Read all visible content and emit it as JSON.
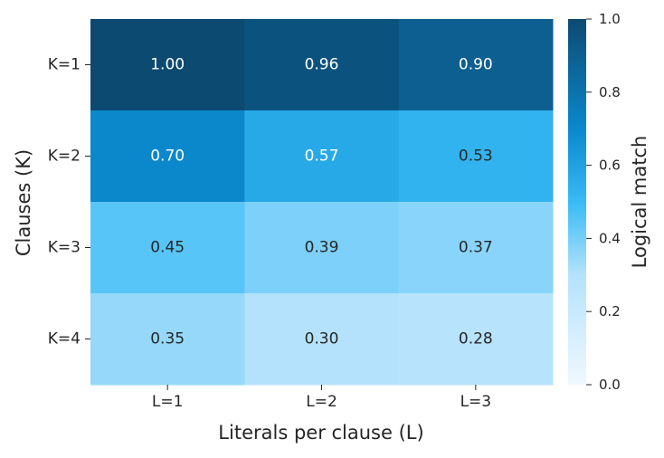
{
  "chart_data": {
    "type": "heatmap",
    "x_categories": [
      "L=1",
      "L=2",
      "L=3"
    ],
    "y_categories": [
      "K=1",
      "K=2",
      "K=3",
      "K=4"
    ],
    "values": [
      [
        1.0,
        0.96,
        0.9
      ],
      [
        0.7,
        0.57,
        0.53
      ],
      [
        0.45,
        0.39,
        0.37
      ],
      [
        0.35,
        0.3,
        0.28
      ]
    ],
    "value_labels": [
      [
        "1.00",
        "0.96",
        "0.90"
      ],
      [
        "0.70",
        "0.57",
        "0.53"
      ],
      [
        "0.45",
        "0.39",
        "0.37"
      ],
      [
        "0.35",
        "0.30",
        "0.28"
      ]
    ],
    "xlabel": "Literals per clause (L)",
    "ylabel": "Clauses (K)",
    "colorbar": {
      "label": "Logical match",
      "range": [
        0.0,
        1.0
      ],
      "ticks": [
        "0.0",
        "0.2",
        "0.4",
        "0.6",
        "0.8",
        "1.0"
      ],
      "colors": {
        "0.0": "#f0f8ff",
        "0.3": "#b4e2fc",
        "0.5": "#38bbf5",
        "0.7": "#0b88cc",
        "1.0": "#0c4a72"
      }
    }
  }
}
